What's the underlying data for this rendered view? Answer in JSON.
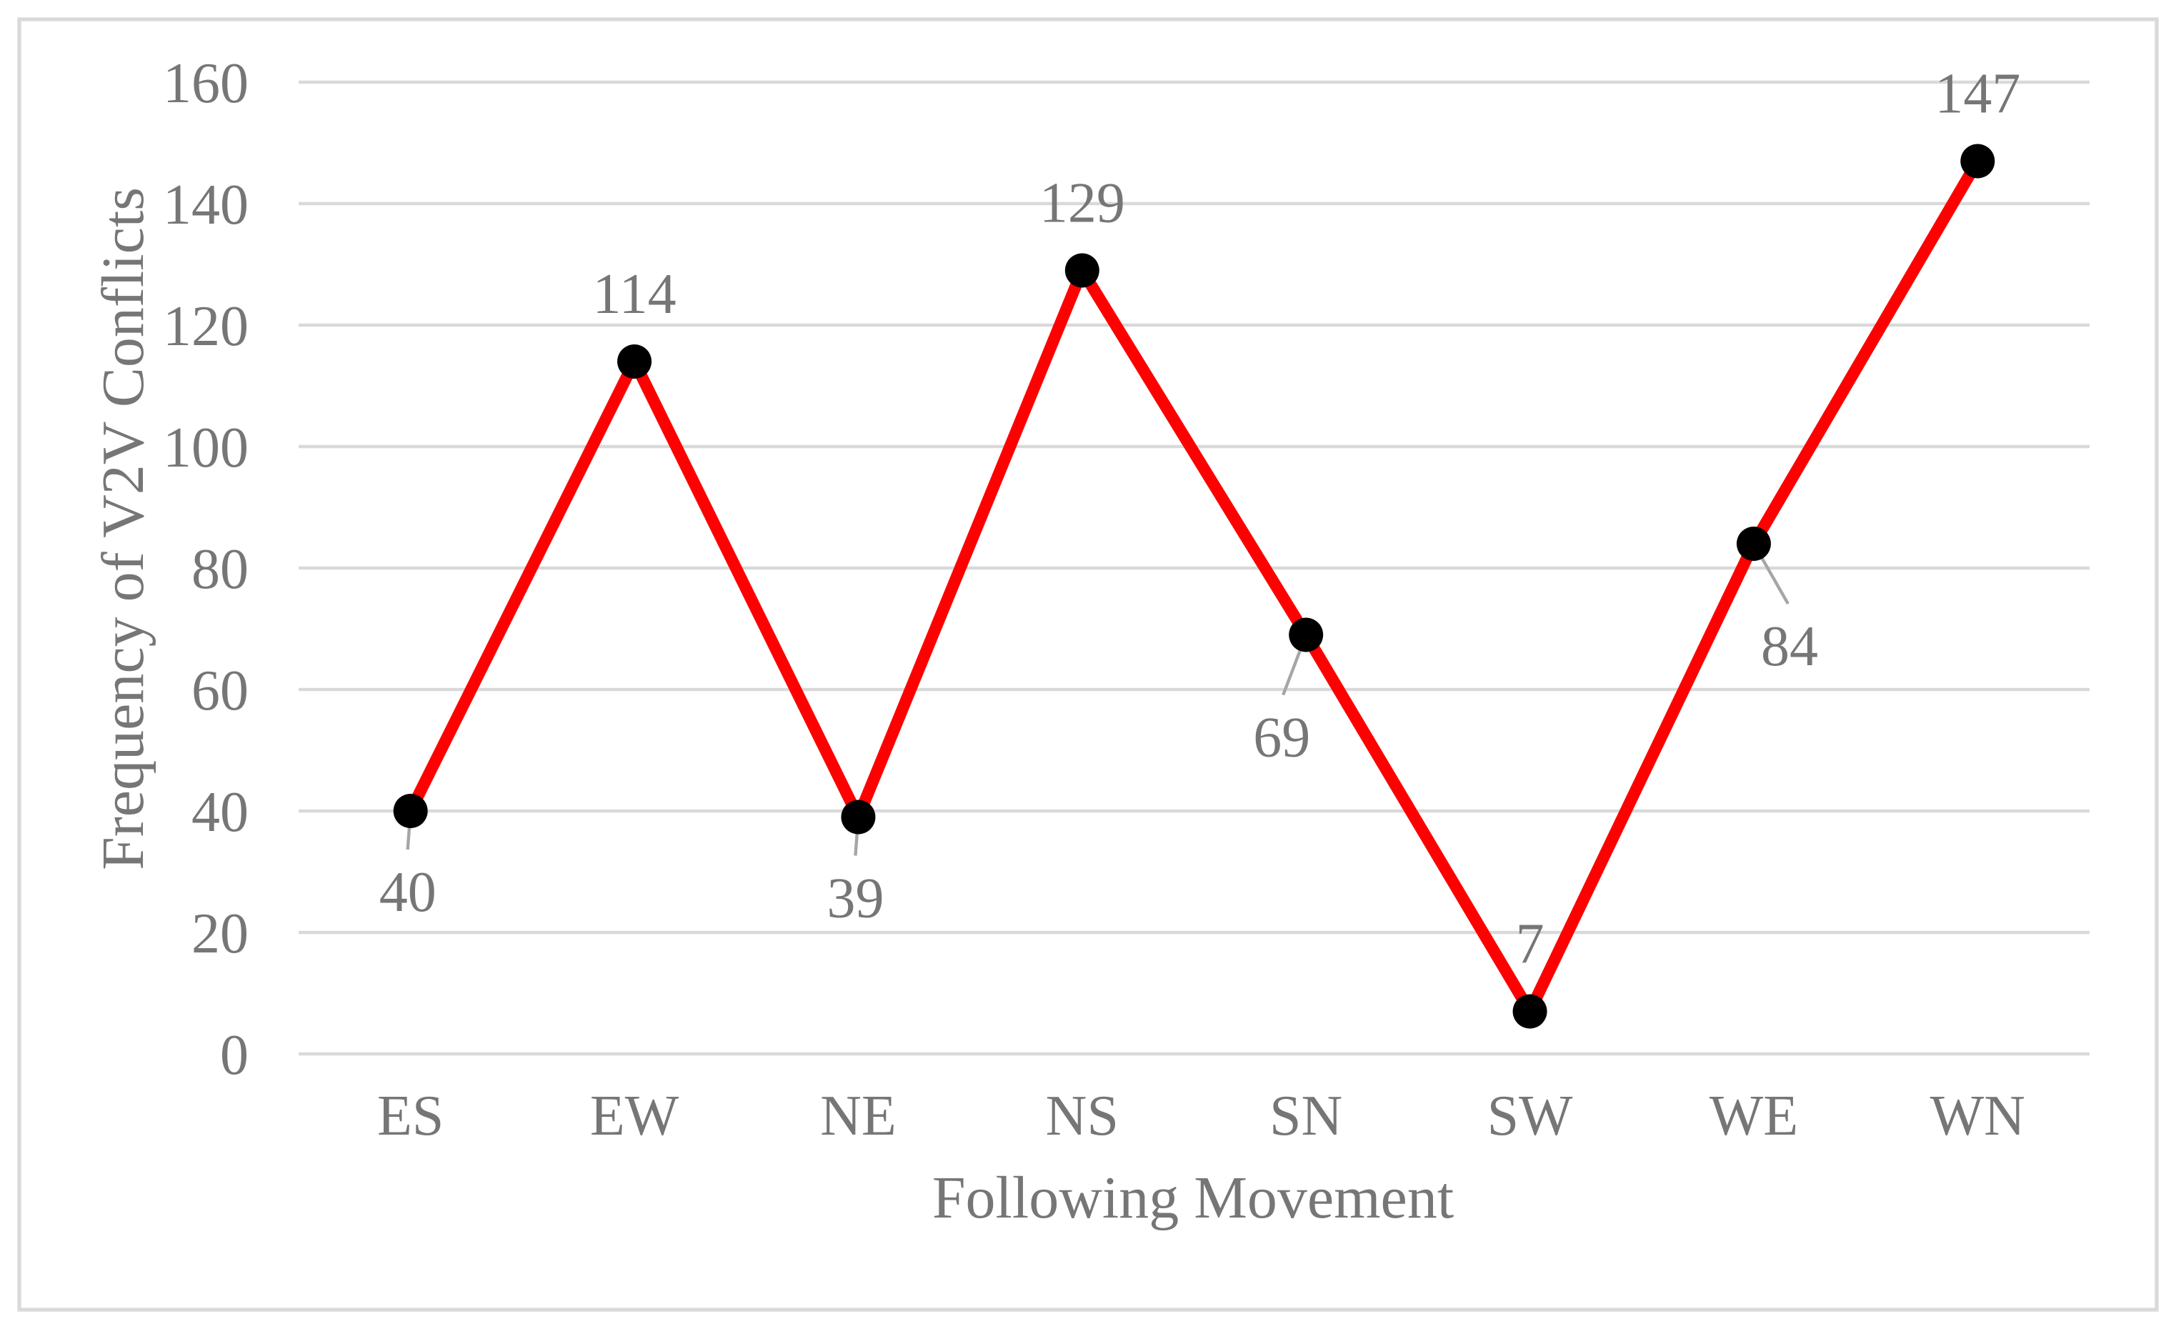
{
  "figure": {
    "background": "#FFFFFF",
    "border_color": "#D9D9D9"
  },
  "chart_data": {
    "type": "line",
    "title": "",
    "xlabel": "Following Movement",
    "ylabel": "Frequency of V2V Conflicts",
    "categories": [
      "ES",
      "EW",
      "NE",
      "NS",
      "SN",
      "SW",
      "WE",
      "WN"
    ],
    "values": [
      40,
      114,
      39,
      129,
      69,
      7,
      84,
      147
    ],
    "data_labels": [
      "40",
      "114",
      "39",
      "129",
      "69",
      "7",
      "84",
      "147"
    ],
    "label_placement": [
      "below",
      "above",
      "below",
      "above",
      "below-left",
      "above",
      "below-right",
      "above"
    ],
    "ylim": [
      0,
      160
    ],
    "yticks": [
      0,
      20,
      40,
      60,
      80,
      100,
      120,
      140,
      160
    ],
    "grid": "horizontal",
    "legend": "none",
    "colors": {
      "line": "#FF0000",
      "marker": "#000000",
      "text": "#767676",
      "gridline": "#D9D9D9",
      "leader": "#A6A6A6",
      "border": "#D9D9D9"
    }
  }
}
